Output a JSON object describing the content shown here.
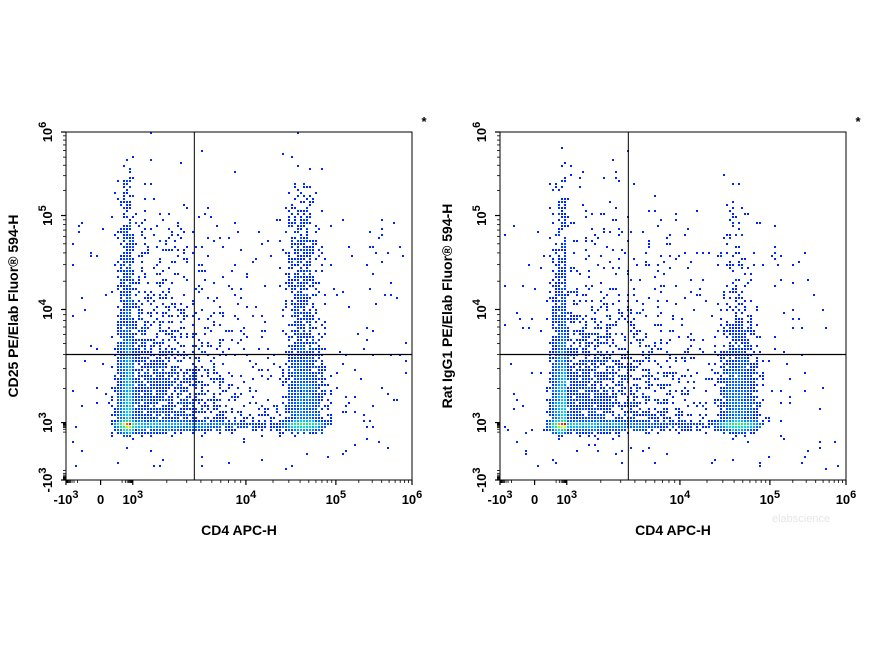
{
  "chart_data": [
    {
      "type": "scatter",
      "subtype": "flow-cytometry-density-dot-plot",
      "corner_mark": "*",
      "xlabel": "CD4 APC-H",
      "ylabel": "CD25 PE/Elab Fluor® 594-H",
      "x_scale": "biexponential",
      "y_scale": "biexponential",
      "xlim": [
        -1000,
        1000000
      ],
      "ylim": [
        -1000,
        1000000
      ],
      "x_ticks": [
        {
          "value": -1000,
          "base": "-10",
          "exp": "3"
        },
        {
          "value": 0,
          "base": "0",
          "exp": ""
        },
        {
          "value": 1000,
          "base": "10",
          "exp": "3"
        },
        {
          "value": 10000,
          "base": "10",
          "exp": "4"
        },
        {
          "value": 100000,
          "base": "10",
          "exp": "5"
        },
        {
          "value": 1000000,
          "base": "10",
          "exp": "6"
        }
      ],
      "y_ticks": [
        {
          "value": -1000,
          "base": "-10",
          "exp": "3"
        },
        {
          "value": 1000,
          "base": "10",
          "exp": "3"
        },
        {
          "value": 10000,
          "base": "10",
          "exp": "4"
        },
        {
          "value": 100000,
          "base": "10",
          "exp": "5"
        },
        {
          "value": 1000000,
          "base": "10",
          "exp": "6"
        }
      ],
      "quadrant_gate": {
        "x": 3500,
        "y": 4000
      },
      "grid": false,
      "colormap": [
        "#0000ff",
        "#00ccff",
        "#00ff66",
        "#ffff00",
        "#ff0000"
      ],
      "populations": [
        {
          "x_center": 700,
          "y_center": 1000,
          "x_spread": 0.55,
          "y_spread": 0.45,
          "weight": 0.62
        },
        {
          "x_center": 45000,
          "y_center": 1000,
          "x_spread": 0.1,
          "y_spread": 0.4,
          "weight": 0.27
        },
        {
          "x_center": 700,
          "y_center": 25000,
          "x_spread": 0.55,
          "y_spread": 0.55,
          "weight": 0.06
        },
        {
          "x_center": 42000,
          "y_center": 25000,
          "x_spread": 0.09,
          "y_spread": 0.45,
          "weight": 0.05
        }
      ]
    },
    {
      "type": "scatter",
      "subtype": "flow-cytometry-density-dot-plot",
      "corner_mark": "*",
      "xlabel": "CD4 APC-H",
      "ylabel": "Rat IgG1 PE/Elab Fluor® 594-H",
      "x_scale": "biexponential",
      "y_scale": "biexponential",
      "xlim": [
        -1000,
        1000000
      ],
      "ylim": [
        -1000,
        1000000
      ],
      "x_ticks": [
        {
          "value": -1000,
          "base": "-10",
          "exp": "3"
        },
        {
          "value": 0,
          "base": "0",
          "exp": ""
        },
        {
          "value": 1000,
          "base": "10",
          "exp": "3"
        },
        {
          "value": 10000,
          "base": "10",
          "exp": "4"
        },
        {
          "value": 100000,
          "base": "10",
          "exp": "5"
        },
        {
          "value": 1000000,
          "base": "10",
          "exp": "6"
        }
      ],
      "y_ticks": [
        {
          "value": -1000,
          "base": "-10",
          "exp": "3"
        },
        {
          "value": 1000,
          "base": "10",
          "exp": "3"
        },
        {
          "value": 10000,
          "base": "10",
          "exp": "4"
        },
        {
          "value": 100000,
          "base": "10",
          "exp": "5"
        },
        {
          "value": 1000000,
          "base": "10",
          "exp": "6"
        }
      ],
      "quadrant_gate": {
        "x": 3500,
        "y": 4000
      },
      "grid": false,
      "colormap": [
        "#0000ff",
        "#00ccff",
        "#00ff66",
        "#ffff00",
        "#ff0000"
      ],
      "populations": [
        {
          "x_center": 700,
          "y_center": 1000,
          "x_spread": 0.55,
          "y_spread": 0.45,
          "weight": 0.66
        },
        {
          "x_center": 45000,
          "y_center": 1000,
          "x_spread": 0.1,
          "y_spread": 0.4,
          "weight": 0.29
        },
        {
          "x_center": 700,
          "y_center": 25000,
          "x_spread": 0.55,
          "y_spread": 0.55,
          "weight": 0.04
        },
        {
          "x_center": 42000,
          "y_center": 25000,
          "x_spread": 0.09,
          "y_spread": 0.45,
          "weight": 0.01
        }
      ]
    }
  ],
  "watermark": "elabscience"
}
